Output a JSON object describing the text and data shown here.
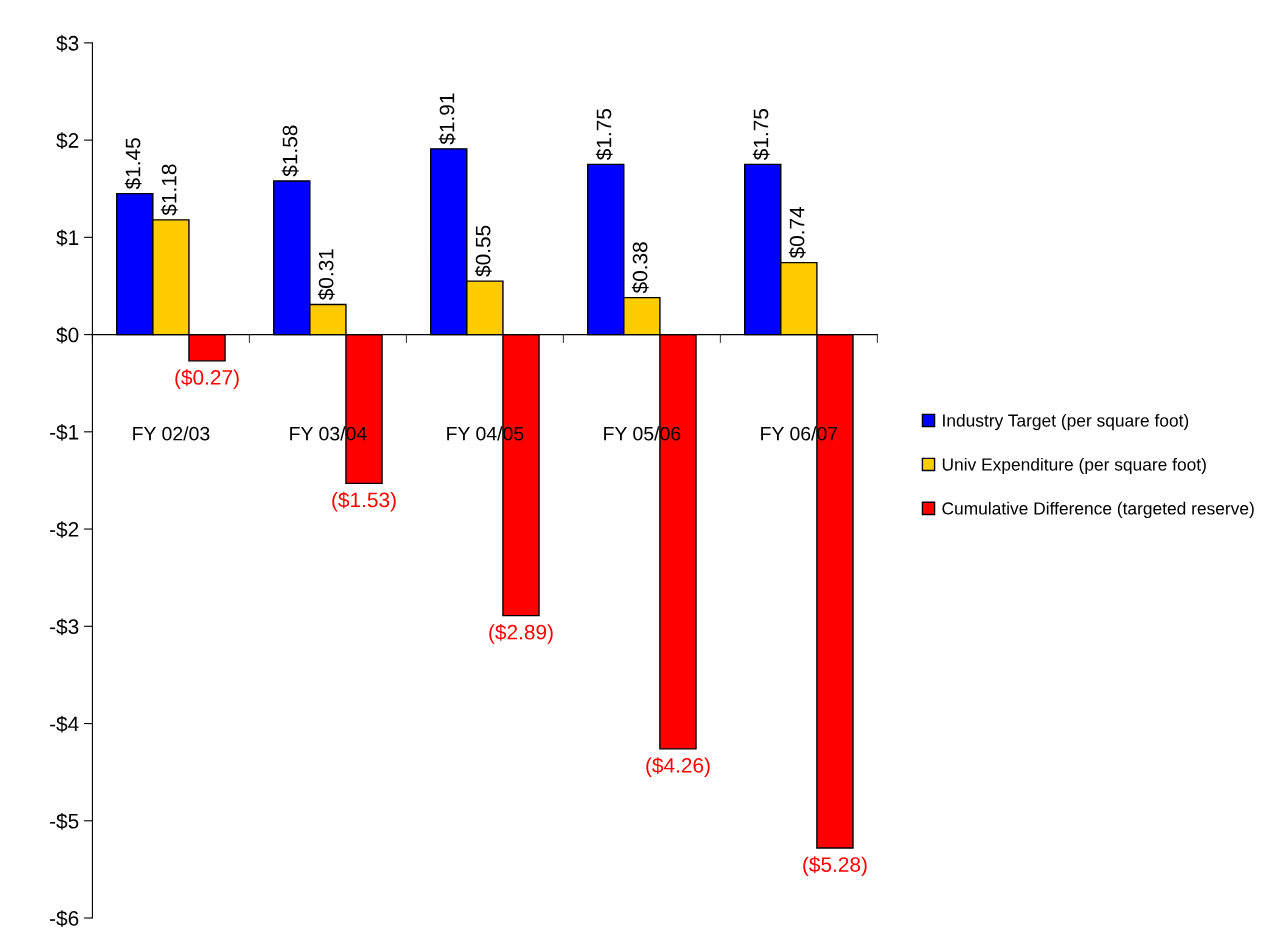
{
  "chart_data": {
    "type": "bar",
    "categories": [
      "FY 02/03",
      "FY 03/04",
      "FY 04/05",
      "FY 05/06",
      "FY 06/07"
    ],
    "series": [
      {
        "name": "Industry Target (per square foot)",
        "color": "#0000ff",
        "values": [
          1.45,
          1.58,
          1.91,
          1.75,
          1.75
        ],
        "value_labels": [
          "$1.45",
          "$1.58",
          "$1.91",
          "$1.75",
          "$1.75"
        ]
      },
      {
        "name": "Univ Expenditure (per square foot)",
        "color": "#ffcc00",
        "values": [
          1.18,
          0.31,
          0.55,
          0.38,
          0.74
        ],
        "value_labels": [
          "$1.18",
          "$0.31",
          "$0.55",
          "$0.38",
          "$0.74"
        ]
      },
      {
        "name": "Cumulative Difference (targeted reserve)",
        "color": "#ff0000",
        "values": [
          -0.27,
          -1.53,
          -2.89,
          -4.26,
          -5.28
        ],
        "value_labels": [
          "($0.27)",
          "($1.53)",
          "($2.89)",
          "($4.26)",
          "($5.28)"
        ]
      }
    ],
    "ylim": [
      -6,
      3
    ],
    "yticks": [
      {
        "value": -6,
        "label": "-$6"
      },
      {
        "value": -5,
        "label": "-$5"
      },
      {
        "value": -4,
        "label": "-$4"
      },
      {
        "value": -3,
        "label": "-$3"
      },
      {
        "value": -2,
        "label": "-$2"
      },
      {
        "value": -1,
        "label": "-$1"
      },
      {
        "value": 0,
        "label": "$0"
      },
      {
        "value": 1,
        "label": "$1"
      },
      {
        "value": 2,
        "label": "$2"
      },
      {
        "value": 3,
        "label": "$3"
      }
    ],
    "legend": "right"
  }
}
